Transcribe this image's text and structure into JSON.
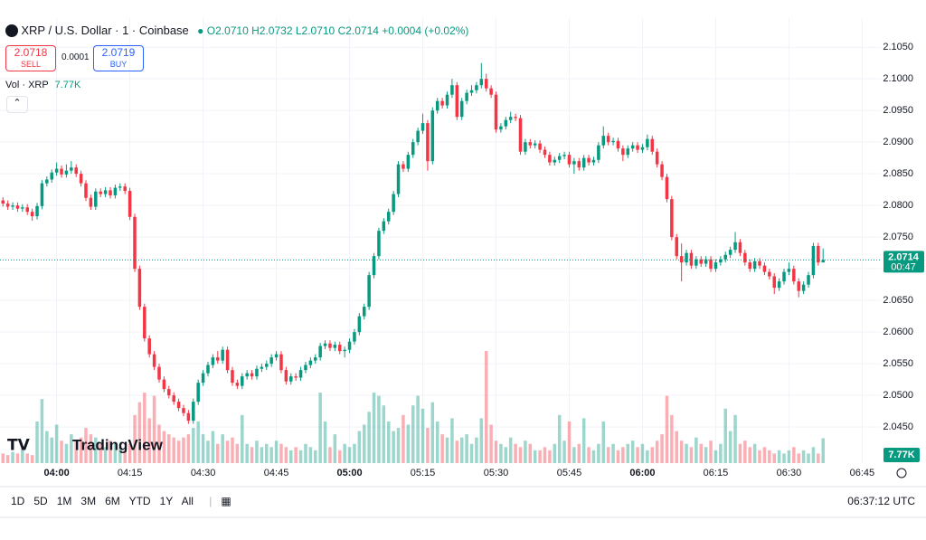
{
  "header": {
    "symbol": "XRP / U.S. Dollar · 1 · Coinbase",
    "ohlc": [
      "O2.0710",
      "H2.0732",
      "L2.0710",
      "C2.0714"
    ],
    "change": "+0.0004 (+0.02%)",
    "sell_price": "2.0718",
    "sell_label": "SELL",
    "spread": "0.0001",
    "buy_price": "2.0719",
    "buy_label": "BUY",
    "volume_title": "Vol · XRP"
  },
  "logo": "TradingView",
  "toolbar": {
    "ranges": [
      "1D",
      "5D",
      "1M",
      "3M",
      "6M",
      "YTD",
      "1Y",
      "All"
    ],
    "clock": "06:37:12 UTC"
  },
  "chart_data": {
    "type": "candlestick",
    "up_color": "#089981",
    "down_color": "#f23645",
    "grid": true,
    "ylim": [
      2.0393,
      2.1096
    ],
    "yticks": [
      {
        "value": 2.105,
        "label": "2.1050"
      },
      {
        "value": 2.1,
        "label": "2.1000"
      },
      {
        "value": 2.095,
        "label": "2.0950"
      },
      {
        "value": 2.09,
        "label": "2.0900"
      },
      {
        "value": 2.085,
        "label": "2.0850"
      },
      {
        "value": 2.08,
        "label": "2.0800"
      },
      {
        "value": 2.075,
        "label": "2.0750"
      },
      {
        "value": 2.07,
        "label": "2.0700"
      },
      {
        "value": 2.065,
        "label": "2.0650"
      },
      {
        "value": 2.06,
        "label": "2.0600"
      },
      {
        "value": 2.055,
        "label": "2.0550"
      },
      {
        "value": 2.05,
        "label": "2.0500"
      },
      {
        "value": 2.045,
        "label": "2.0450"
      }
    ],
    "xlim": [
      -0.6,
      180
    ],
    "xticks": [
      {
        "value": 11,
        "label": "04:00"
      },
      {
        "value": 26,
        "label": "04:15"
      },
      {
        "value": 41,
        "label": "04:30"
      },
      {
        "value": 56,
        "label": "04:45"
      },
      {
        "value": 71,
        "label": "05:00"
      },
      {
        "value": 86,
        "label": "05:15"
      },
      {
        "value": 101,
        "label": "05:30"
      },
      {
        "value": 116,
        "label": "05:45"
      },
      {
        "value": 131,
        "label": "06:00"
      },
      {
        "value": 146,
        "label": "06:15"
      },
      {
        "value": 161,
        "label": "06:30"
      },
      {
        "value": 176,
        "label": "06:45"
      }
    ],
    "countdown": "00:47",
    "volume_label": "7.77K",
    "open": [
      2.0808,
      2.0803,
      2.0798,
      2.08,
      2.0795,
      2.0797,
      2.079,
      2.0783,
      2.0799,
      2.0835,
      2.0841,
      2.0852,
      2.0858,
      2.0849,
      2.0855,
      2.086,
      2.085,
      2.0835,
      2.0812,
      2.0798,
      2.0822,
      2.0818,
      2.0824,
      2.0816,
      2.0828,
      2.083,
      2.0823,
      2.0782,
      2.07,
      2.064,
      2.059,
      2.0565,
      2.0545,
      2.0525,
      2.051,
      2.05,
      2.049,
      2.048,
      2.0472,
      2.046,
      2.049,
      2.052,
      2.0535,
      2.0548,
      2.056,
      2.0555,
      2.0572,
      2.054,
      2.052,
      2.0515,
      2.053,
      2.0535,
      2.053,
      2.0542,
      2.0545,
      2.055,
      2.056,
      2.0565,
      2.054,
      2.0522,
      2.053,
      2.0528,
      2.054,
      2.0548,
      2.0555,
      2.056,
      2.0578,
      2.0582,
      2.0575,
      2.058,
      2.057,
      2.0572,
      2.0585,
      2.06,
      2.0625,
      2.064,
      2.069,
      2.072,
      2.076,
      2.0775,
      2.079,
      2.0818,
      2.0865,
      2.0858,
      2.088,
      2.09,
      2.0918,
      2.093,
      2.087,
      2.095,
      2.0965,
      2.0958,
      2.0975,
      2.099,
      2.094,
      2.0965,
      2.0978,
      2.0982,
      2.099,
      2.1,
      2.0985,
      2.0975,
      2.092,
      2.0925,
      2.0935,
      2.094,
      2.0938,
      2.0885,
      2.09,
      2.0895,
      2.0898,
      2.0888,
      2.088,
      2.0868,
      2.0872,
      2.0878,
      2.088,
      2.0865,
      2.087,
      2.086,
      2.0875,
      2.0868,
      2.0872,
      2.0895,
      2.091,
      2.09,
      2.0902,
      2.089,
      2.088,
      2.089,
      2.0895,
      2.0888,
      2.0892,
      2.0905,
      2.0885,
      2.0865,
      2.0845,
      2.081,
      2.075,
      2.072,
      2.071,
      2.0725,
      2.0705,
      2.0715,
      2.0708,
      2.0715,
      2.07,
      2.071,
      2.0715,
      2.0722,
      2.073,
      2.0742,
      2.0725,
      2.071,
      2.07,
      2.0712,
      2.0705,
      2.0695,
      2.0688,
      2.067,
      2.068,
      2.0695,
      2.07,
      2.068,
      2.0665,
      2.0675,
      2.069,
      2.0736,
      2.071
    ],
    "high": [
      2.0813,
      2.0808,
      2.0805,
      2.0805,
      2.0802,
      2.0802,
      2.0795,
      2.0804,
      2.084,
      2.0846,
      2.0857,
      2.0868,
      2.0863,
      2.0865,
      2.087,
      2.0865,
      2.0855,
      2.084,
      2.0817,
      2.0827,
      2.0827,
      2.0829,
      2.0829,
      2.0833,
      2.0835,
      2.0835,
      2.0828,
      2.0787,
      2.0705,
      2.0645,
      2.0595,
      2.057,
      2.055,
      2.053,
      2.0515,
      2.0505,
      2.0495,
      2.0485,
      2.0477,
      2.0495,
      2.0525,
      2.054,
      2.0553,
      2.0565,
      2.057,
      2.0577,
      2.0577,
      2.0545,
      2.0525,
      2.0535,
      2.054,
      2.054,
      2.0547,
      2.055,
      2.0555,
      2.0565,
      2.057,
      2.057,
      2.0545,
      2.0535,
      2.0535,
      2.0545,
      2.0553,
      2.056,
      2.0565,
      2.0583,
      2.0587,
      2.0587,
      2.0585,
      2.0585,
      2.0577,
      2.059,
      2.0605,
      2.063,
      2.0645,
      2.0695,
      2.0725,
      2.0765,
      2.078,
      2.0795,
      2.0823,
      2.087,
      2.087,
      2.0885,
      2.0905,
      2.0923,
      2.0945,
      2.0935,
      2.0955,
      2.097,
      2.097,
      2.098,
      2.1,
      2.0995,
      2.097,
      2.0983,
      2.099,
      2.0995,
      2.1025,
      2.1008,
      2.099,
      2.098,
      2.093,
      2.094,
      2.0948,
      2.0945,
      2.0943,
      2.0905,
      2.0905,
      2.0903,
      2.0903,
      2.0893,
      2.0885,
      2.0877,
      2.0883,
      2.0885,
      2.0885,
      2.0875,
      2.0875,
      2.088,
      2.088,
      2.0877,
      2.09,
      2.0925,
      2.0915,
      2.0907,
      2.0907,
      2.0895,
      2.0895,
      2.09,
      2.09,
      2.0897,
      2.0912,
      2.091,
      2.089,
      2.087,
      2.085,
      2.0815,
      2.0755,
      2.074,
      2.073,
      2.073,
      2.072,
      2.072,
      2.072,
      2.072,
      2.0715,
      2.072,
      2.0727,
      2.0735,
      2.0758,
      2.0747,
      2.073,
      2.0715,
      2.0717,
      2.0717,
      2.071,
      2.07,
      2.0693,
      2.0685,
      2.07,
      2.071,
      2.0705,
      2.0685,
      2.068,
      2.0695,
      2.0741,
      2.0741,
      2.0732
    ],
    "low": [
      2.0798,
      2.0793,
      2.0793,
      2.079,
      2.079,
      2.0785,
      2.0776,
      2.0778,
      2.0794,
      2.083,
      2.0836,
      2.0847,
      2.0844,
      2.0844,
      2.085,
      2.0845,
      2.083,
      2.0807,
      2.0793,
      2.0793,
      2.0813,
      2.0813,
      2.0811,
      2.0811,
      2.0823,
      2.0818,
      2.0777,
      2.0695,
      2.0635,
      2.0585,
      2.056,
      2.054,
      2.052,
      2.0505,
      2.0495,
      2.0485,
      2.0475,
      2.0467,
      2.0455,
      2.0455,
      2.0485,
      2.0515,
      2.053,
      2.0543,
      2.055,
      2.055,
      2.0535,
      2.0515,
      2.051,
      2.051,
      2.0525,
      2.0525,
      2.0525,
      2.0537,
      2.054,
      2.0545,
      2.0555,
      2.0535,
      2.0517,
      2.0517,
      2.0523,
      2.0523,
      2.0535,
      2.0543,
      2.055,
      2.0555,
      2.0573,
      2.057,
      2.057,
      2.0565,
      2.056,
      2.0567,
      2.058,
      2.0595,
      2.062,
      2.0635,
      2.0685,
      2.0715,
      2.0755,
      2.077,
      2.0785,
      2.0813,
      2.0853,
      2.0853,
      2.0875,
      2.0895,
      2.0913,
      2.0855,
      2.0865,
      2.0945,
      2.0953,
      2.0953,
      2.097,
      2.0935,
      2.0935,
      2.096,
      2.0973,
      2.0977,
      2.0985,
      2.098,
      2.097,
      2.0915,
      2.0915,
      2.092,
      2.093,
      2.0933,
      2.088,
      2.088,
      2.089,
      2.089,
      2.0883,
      2.0875,
      2.0863,
      2.0863,
      2.0867,
      2.0873,
      2.086,
      2.085,
      2.0855,
      2.0855,
      2.0863,
      2.0863,
      2.0867,
      2.089,
      2.0895,
      2.0895,
      2.0885,
      2.087,
      2.0875,
      2.0885,
      2.0883,
      2.0883,
      2.0887,
      2.088,
      2.086,
      2.084,
      2.0805,
      2.0745,
      2.0715,
      2.068,
      2.0705,
      2.07,
      2.07,
      2.0703,
      2.0703,
      2.0695,
      2.0695,
      2.0705,
      2.071,
      2.0717,
      2.0725,
      2.072,
      2.0705,
      2.0695,
      2.0695,
      2.07,
      2.069,
      2.0683,
      2.066,
      2.0665,
      2.0675,
      2.069,
      2.0675,
      2.0655,
      2.066,
      2.067,
      2.0685,
      2.0705,
      2.071
    ],
    "close": [
      2.0803,
      2.0798,
      2.08,
      2.0795,
      2.0797,
      2.079,
      2.0783,
      2.0799,
      2.0835,
      2.0841,
      2.0852,
      2.0858,
      2.0849,
      2.0855,
      2.086,
      2.085,
      2.0835,
      2.0812,
      2.0798,
      2.0822,
      2.0818,
      2.0824,
      2.0816,
      2.0828,
      2.083,
      2.0823,
      2.0782,
      2.07,
      2.064,
      2.059,
      2.0565,
      2.0545,
      2.0525,
      2.051,
      2.05,
      2.049,
      2.048,
      2.0472,
      2.046,
      2.049,
      2.052,
      2.0535,
      2.0548,
      2.056,
      2.0555,
      2.0572,
      2.054,
      2.052,
      2.0515,
      2.053,
      2.0535,
      2.053,
      2.0542,
      2.0545,
      2.055,
      2.056,
      2.0565,
      2.054,
      2.0522,
      2.053,
      2.0528,
      2.054,
      2.0548,
      2.0555,
      2.056,
      2.0578,
      2.0582,
      2.0575,
      2.058,
      2.057,
      2.0572,
      2.0585,
      2.06,
      2.0625,
      2.064,
      2.069,
      2.072,
      2.076,
      2.0775,
      2.079,
      2.0818,
      2.0865,
      2.0858,
      2.088,
      2.09,
      2.0918,
      2.093,
      2.087,
      2.095,
      2.0965,
      2.0958,
      2.0975,
      2.099,
      2.094,
      2.0965,
      2.0978,
      2.0982,
      2.099,
      2.1,
      2.0985,
      2.0975,
      2.092,
      2.0925,
      2.0935,
      2.094,
      2.0938,
      2.0885,
      2.09,
      2.0895,
      2.0898,
      2.0888,
      2.088,
      2.0868,
      2.0872,
      2.0878,
      2.088,
      2.0865,
      2.087,
      2.086,
      2.0875,
      2.0868,
      2.0872,
      2.0895,
      2.091,
      2.09,
      2.0902,
      2.089,
      2.088,
      2.089,
      2.0895,
      2.0888,
      2.0892,
      2.0905,
      2.0885,
      2.0865,
      2.0845,
      2.081,
      2.075,
      2.072,
      2.071,
      2.0725,
      2.0705,
      2.0715,
      2.0708,
      2.0715,
      2.07,
      2.071,
      2.0715,
      2.0722,
      2.073,
      2.0742,
      2.0725,
      2.071,
      2.07,
      2.0712,
      2.0705,
      2.0695,
      2.0688,
      2.067,
      2.068,
      2.0695,
      2.07,
      2.068,
      2.0665,
      2.0675,
      2.069,
      2.0736,
      2.071,
      2.0714
    ],
    "volume": [
      3000,
      2500,
      3500,
      3000,
      4500,
      3000,
      2500,
      13000,
      20000,
      10000,
      8000,
      12000,
      7000,
      6000,
      9000,
      7000,
      8000,
      11000,
      9000,
      8000,
      6000,
      5000,
      7000,
      6000,
      5000,
      4000,
      6000,
      15000,
      19000,
      22000,
      14000,
      21000,
      12000,
      10000,
      9000,
      8000,
      7000,
      8000,
      9000,
      11000,
      13000,
      9000,
      7000,
      10000,
      6000,
      9000,
      7000,
      8000,
      6000,
      15000,
      6000,
      5000,
      7000,
      5000,
      6000,
      5000,
      7000,
      6000,
      5000,
      4000,
      5000,
      4000,
      6000,
      5000,
      4000,
      22000,
      13000,
      5000,
      9000,
      4000,
      6000,
      5000,
      6000,
      10000,
      12000,
      16000,
      22000,
      21000,
      18000,
      13000,
      10000,
      11000,
      15000,
      12000,
      18000,
      21000,
      17000,
      11000,
      19000,
      13000,
      9000,
      8000,
      14000,
      7000,
      8000,
      9000,
      6000,
      8000,
      14000,
      35000,
      12000,
      7000,
      6000,
      5000,
      8000,
      6000,
      5000,
      7000,
      6000,
      4000,
      4000,
      5000,
      4000,
      6000,
      15000,
      7000,
      13000,
      5000,
      6000,
      14000,
      5000,
      4000,
      6000,
      13000,
      5000,
      6000,
      4000,
      5000,
      6000,
      7000,
      5000,
      6000,
      4000,
      5000,
      7000,
      9000,
      21000,
      15000,
      10000,
      7000,
      6000,
      5000,
      8000,
      6000,
      5000,
      7000,
      4000,
      6000,
      17000,
      10000,
      15000,
      6000,
      7000,
      5000,
      6000,
      4000,
      5000,
      4000,
      3000,
      4000,
      3000,
      4000,
      5000,
      3000,
      4000,
      3000,
      5000,
      3000,
      7770
    ]
  }
}
